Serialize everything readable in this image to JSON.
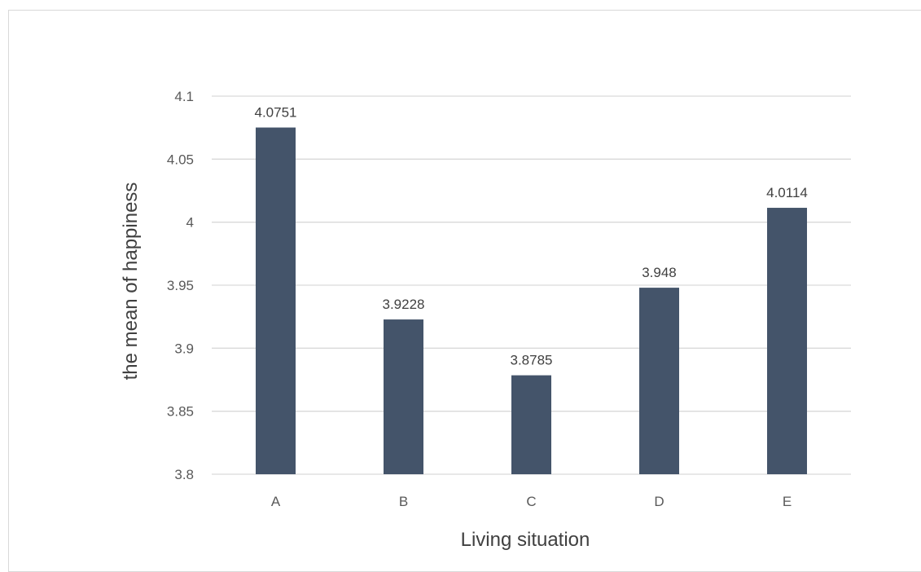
{
  "chart_data": {
    "type": "bar",
    "title": "",
    "xlabel": "Living situation",
    "ylabel": "the mean of happiness",
    "categories": [
      "A",
      "B",
      "C",
      "D",
      "E"
    ],
    "values": [
      4.0751,
      3.9228,
      3.8785,
      3.948,
      4.0114
    ],
    "data_labels": [
      "4.0751",
      "3.9228",
      "3.8785",
      "3.948",
      "4.0114"
    ],
    "ylim": [
      3.8,
      4.1
    ],
    "y_ticks": [
      3.8,
      3.85,
      3.9,
      3.95,
      4,
      4.05,
      4.1
    ],
    "y_tick_labels": [
      "3.8",
      "3.85",
      "3.9",
      "3.95",
      "4",
      "4.05",
      "4.1"
    ],
    "grid": true,
    "legend": "none",
    "bar_color": "#44546a"
  }
}
